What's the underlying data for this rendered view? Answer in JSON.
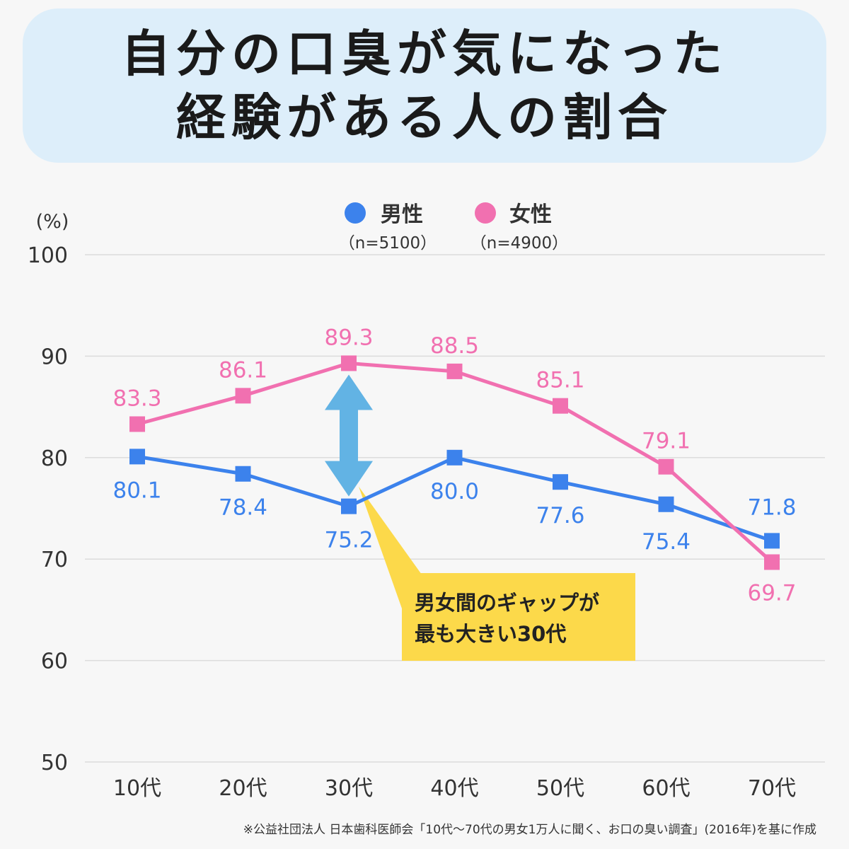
{
  "title": {
    "line1": "自分の口臭が気になった",
    "line2": "経験がある人の割合"
  },
  "colors": {
    "male": "#3c82ec",
    "female": "#f170b0",
    "arrow": "#62b3e4",
    "callout": "#fcd94a",
    "grid": "#dcdcdc",
    "axis_text": "#333333"
  },
  "chart_data": {
    "type": "line",
    "title": "自分の口臭が気になった経験がある人の割合",
    "ylabel": "(%)",
    "xlabel": "",
    "categories": [
      "10代",
      "20代",
      "30代",
      "40代",
      "50代",
      "60代",
      "70代"
    ],
    "ylim": [
      50,
      100
    ],
    "yticks": [
      100,
      90,
      80,
      70,
      60,
      50
    ],
    "grid": true,
    "legend_position": "top-center",
    "series": [
      {
        "key": "male",
        "name": "男性",
        "note": "（n=5100）",
        "values": [
          80.1,
          78.4,
          75.2,
          80.0,
          77.6,
          75.4,
          71.8
        ],
        "labels": [
          "80.1",
          "78.4",
          "75.2",
          "80.0",
          "77.6",
          "75.4",
          "71.8"
        ]
      },
      {
        "key": "female",
        "name": "女性",
        "note": "（n=4900）",
        "values": [
          83.3,
          86.1,
          89.3,
          88.5,
          85.1,
          79.1,
          69.7
        ],
        "labels": [
          "83.3",
          "86.1",
          "89.3",
          "88.5",
          "85.1",
          "79.1",
          "69.7"
        ]
      }
    ],
    "annotation": {
      "category": "30代",
      "line1": "男女間のギャップが",
      "line2": "最も大きい30代"
    }
  },
  "footnote": "※公益社団法人 日本歯科医師会「10代〜70代の男女1万人に聞く、お口の臭い調査」(2016年)を基に作成"
}
